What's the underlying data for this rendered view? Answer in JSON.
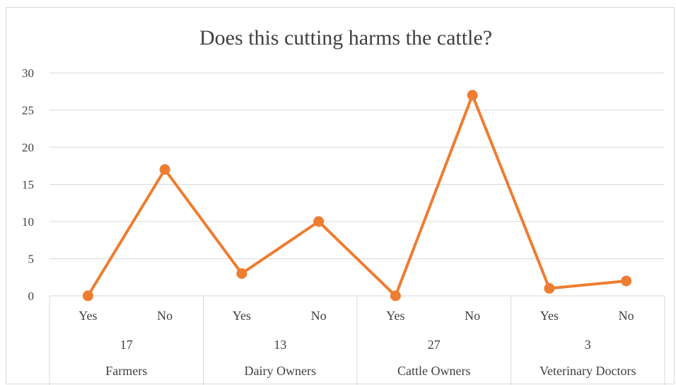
{
  "chart_data": {
    "type": "line",
    "title": "Does this cutting harms the cattle?",
    "xlabel": "",
    "ylabel": "",
    "ylim": [
      0,
      30
    ],
    "yticks": [
      0,
      5,
      10,
      15,
      20,
      25,
      30
    ],
    "grid": true,
    "legend": "none",
    "groups": [
      {
        "label": "Farmers",
        "count": "17",
        "categories": [
          {
            "label": "Yes",
            "value": 0
          },
          {
            "label": "No",
            "value": 17
          }
        ]
      },
      {
        "label": "Dairy Owners",
        "count": "13",
        "categories": [
          {
            "label": "Yes",
            "value": 3
          },
          {
            "label": "No",
            "value": 10
          }
        ]
      },
      {
        "label": "Cattle Owners",
        "count": "27",
        "categories": [
          {
            "label": "Yes",
            "value": 0
          },
          {
            "label": "No",
            "value": 27
          }
        ]
      },
      {
        "label": "Veterinary Doctors",
        "count": "3",
        "categories": [
          {
            "label": "Yes",
            "value": 1
          },
          {
            "label": "No",
            "value": 2
          }
        ]
      }
    ],
    "colors": {
      "series": "#ED7D31",
      "grid": "#d9d9d9",
      "axis_text": "#404040"
    }
  }
}
